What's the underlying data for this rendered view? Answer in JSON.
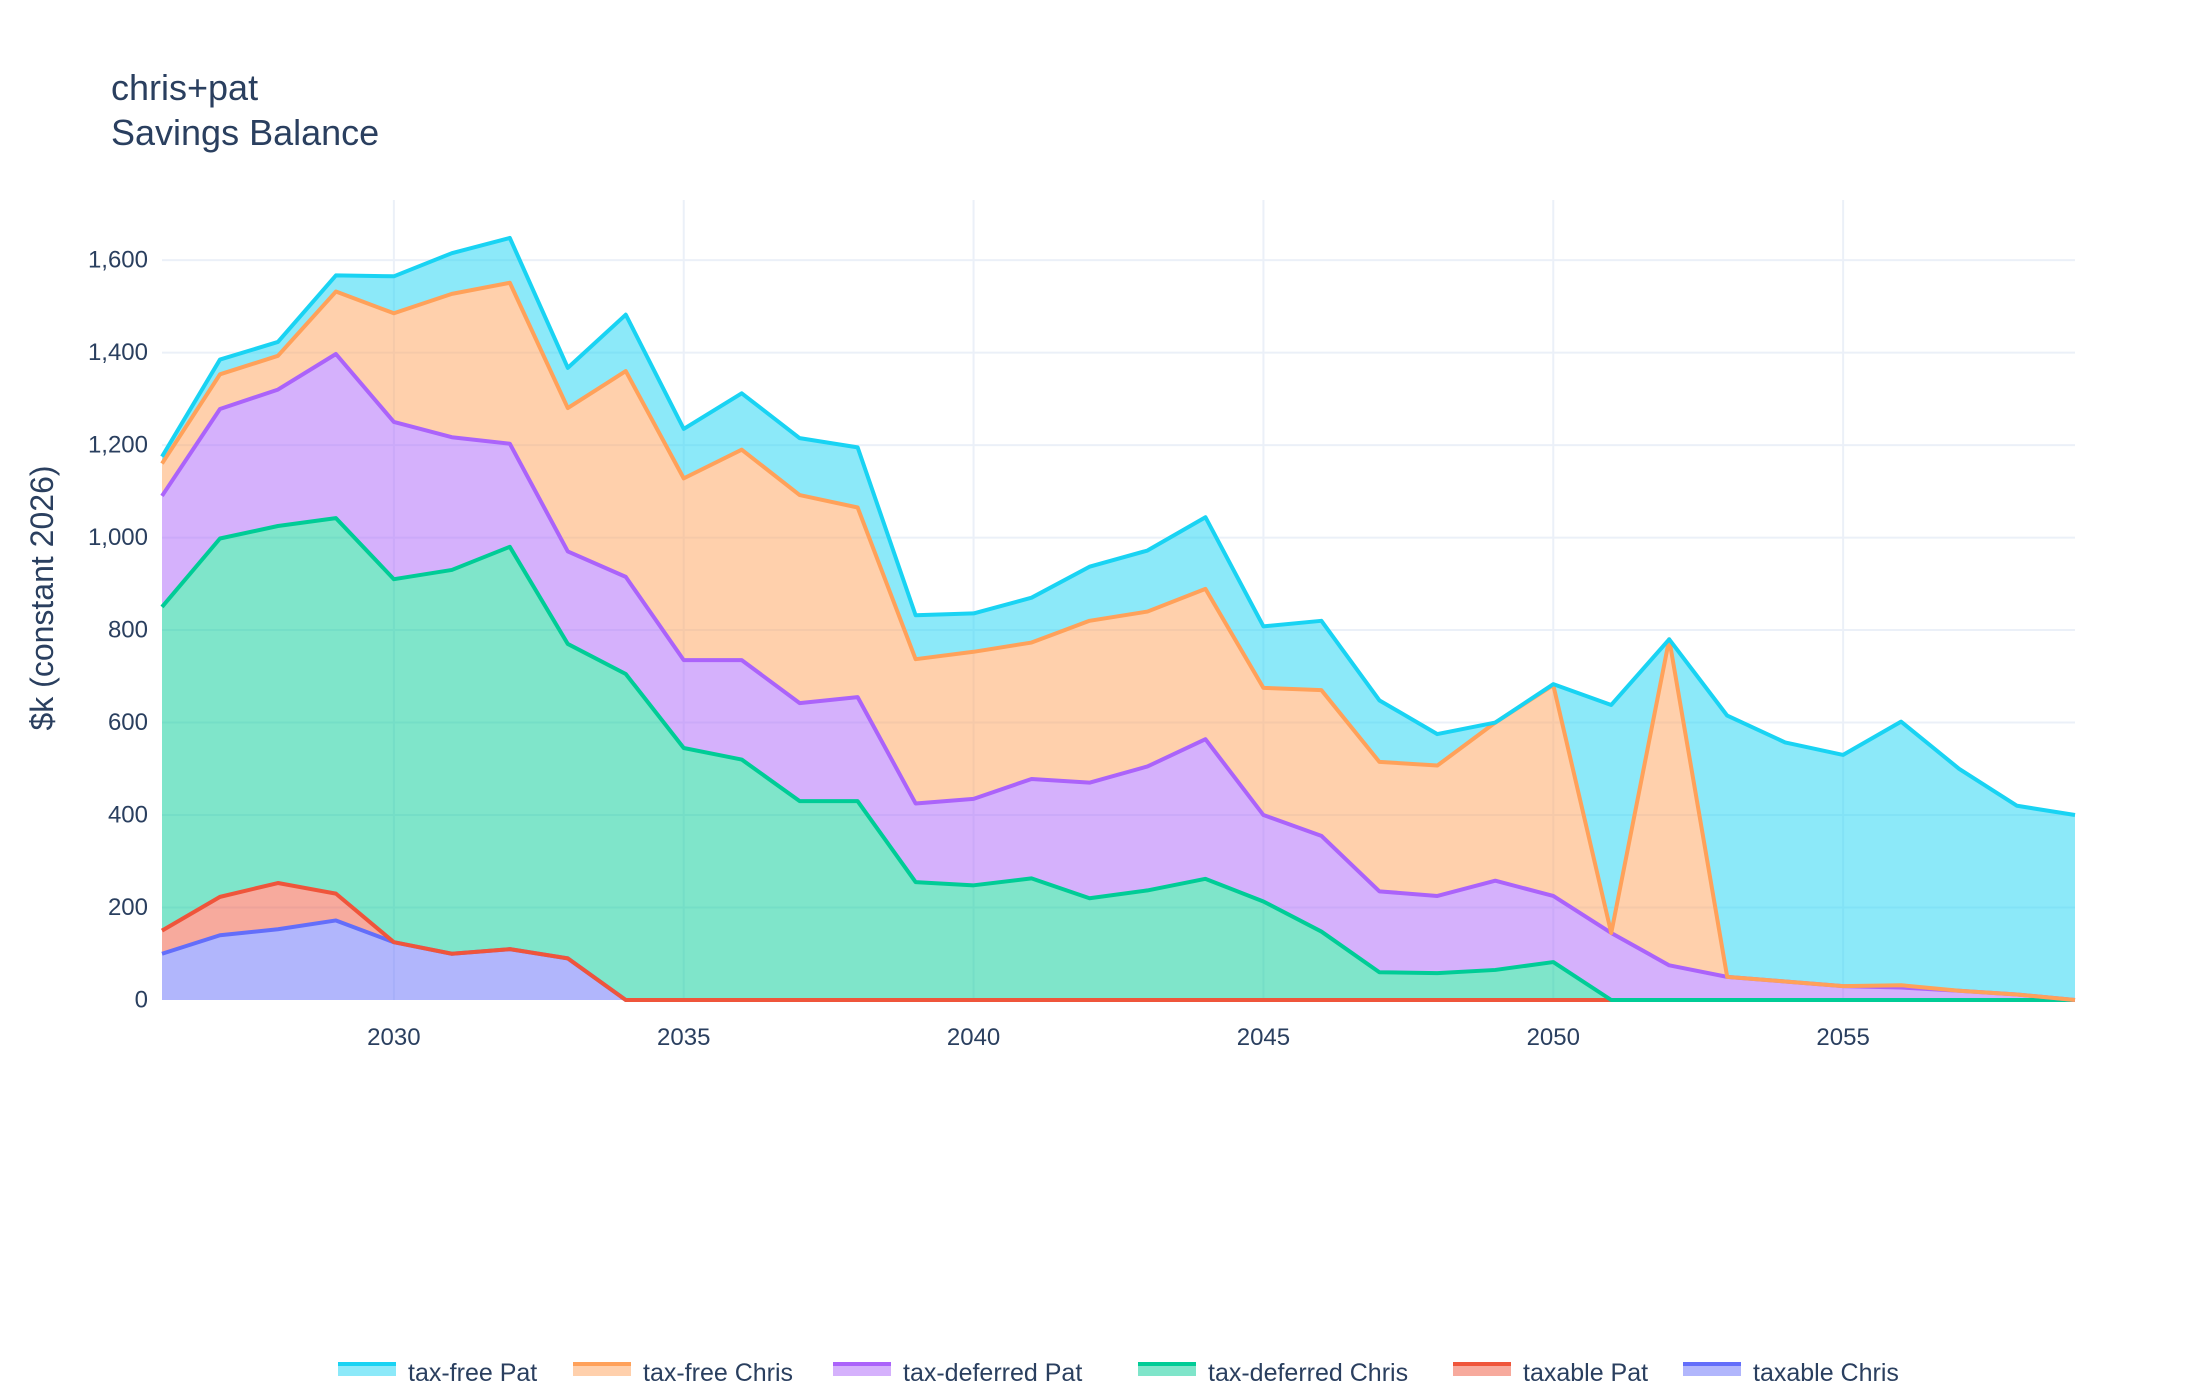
{
  "chart_data": {
    "type": "area",
    "stacked": true,
    "title": "chris+pat",
    "subtitle": "Savings Balance",
    "xlabel": "",
    "ylabel": "$k (constant 2026)",
    "xlim": [
      2026,
      2059
    ],
    "ylim": [
      0,
      1730
    ],
    "x_ticks": [
      2030,
      2035,
      2040,
      2045,
      2050,
      2055
    ],
    "x_tick_labels": [
      "2030",
      "2035",
      "2040",
      "2045",
      "2050",
      "2055"
    ],
    "y_ticks": [
      0,
      200,
      400,
      600,
      800,
      1000,
      1200,
      1400,
      1600
    ],
    "y_tick_labels": [
      "0",
      "200",
      "400",
      "600",
      "800",
      "1,000",
      "1,200",
      "1,400",
      "1,600"
    ],
    "grid": true,
    "legend_position": "bottom",
    "legend_order": [
      "tax-free Pat",
      "tax-free Chris",
      "tax-deferred Pat",
      "tax-deferred Chris",
      "taxable Pat",
      "taxable Chris"
    ],
    "x": [
      2026,
      2027,
      2028,
      2029,
      2030,
      2031,
      2032,
      2033,
      2034,
      2035,
      2036,
      2037,
      2038,
      2039,
      2040,
      2041,
      2042,
      2043,
      2044,
      2045,
      2046,
      2047,
      2048,
      2049,
      2050,
      2051,
      2052,
      2053,
      2054,
      2055,
      2056,
      2057,
      2058,
      2059
    ],
    "series": [
      {
        "name": "taxable Chris",
        "color": "#636efa",
        "values": [
          100,
          140,
          153,
          172,
          125,
          100,
          110,
          90,
          0,
          0,
          0,
          0,
          0,
          0,
          0,
          0,
          0,
          0,
          0,
          0,
          0,
          0,
          0,
          0,
          0,
          0,
          0,
          0,
          0,
          0,
          0,
          0,
          0,
          0
        ]
      },
      {
        "name": "taxable Pat",
        "color": "#ef553b",
        "values": [
          50,
          83,
          100,
          58,
          0,
          0,
          0,
          0,
          0,
          0,
          0,
          0,
          0,
          0,
          0,
          0,
          0,
          0,
          0,
          0,
          0,
          0,
          0,
          0,
          0,
          0,
          0,
          0,
          0,
          0,
          0,
          0,
          0,
          0
        ]
      },
      {
        "name": "tax-deferred Chris",
        "color": "#00cc96",
        "values": [
          700,
          775,
          772,
          812,
          785,
          830,
          870,
          680,
          705,
          545,
          520,
          430,
          430,
          255,
          248,
          263,
          220,
          237,
          262,
          213,
          148,
          60,
          58,
          65,
          82,
          0,
          0,
          0,
          0,
          0,
          0,
          0,
          0,
          0
        ]
      },
      {
        "name": "tax-deferred Pat",
        "color": "#ab63fa",
        "values": [
          240,
          280,
          295,
          355,
          340,
          287,
          223,
          200,
          210,
          190,
          215,
          212,
          225,
          170,
          187,
          215,
          250,
          268,
          302,
          187,
          207,
          175,
          167,
          193,
          143,
          145,
          75,
          50,
          40,
          30,
          27,
          20,
          12,
          0
        ]
      },
      {
        "name": "tax-free Chris",
        "color": "#ffa15a",
        "values": [
          70,
          75,
          73,
          135,
          235,
          310,
          348,
          310,
          445,
          393,
          455,
          450,
          410,
          312,
          318,
          295,
          350,
          335,
          325,
          275,
          315,
          280,
          282,
          342,
          456,
          0,
          705,
          0,
          0,
          0,
          5,
          0,
          0,
          0
        ]
      },
      {
        "name": "tax-free Pat",
        "color": "#19d3f3",
        "values": [
          15,
          32,
          30,
          35,
          80,
          88,
          97,
          87,
          122,
          107,
          122,
          123,
          130,
          95,
          83,
          97,
          117,
          132,
          155,
          133,
          150,
          133,
          68,
          0,
          2,
          493,
          0,
          565,
          517,
          500,
          570,
          480,
          408,
          400
        ]
      }
    ]
  }
}
